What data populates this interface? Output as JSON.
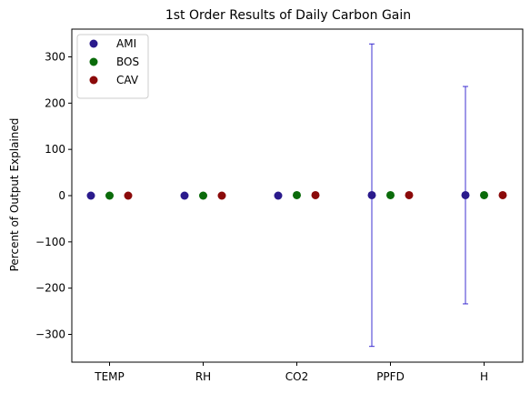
{
  "chart_data": {
    "type": "scatter",
    "title": "1st Order Results of Daily Carbon Gain",
    "xlabel": "",
    "ylabel": "Percent of Output Explained",
    "categories": [
      "TEMP",
      "RH",
      "CO2",
      "PPFD",
      "H"
    ],
    "ylim": [
      -360,
      360
    ],
    "yticks": [
      -300,
      -200,
      -100,
      0,
      100,
      200,
      300
    ],
    "ytick_labels": [
      "−300",
      "−200",
      "−100",
      "0",
      "100",
      "200",
      "300"
    ],
    "grid": false,
    "legend_position": "top-left",
    "series": [
      {
        "name": "AMI",
        "color": "#2a1a8c",
        "values": [
          0,
          0,
          0,
          1,
          1
        ],
        "error": [
          null,
          null,
          null,
          327,
          235
        ]
      },
      {
        "name": "BOS",
        "color": "#0a6b0a",
        "values": [
          0,
          0,
          1,
          1,
          1
        ],
        "error": [
          null,
          null,
          null,
          null,
          null
        ]
      },
      {
        "name": "CAV",
        "color": "#8b0a0a",
        "values": [
          0,
          0,
          1,
          1,
          1
        ],
        "error": [
          null,
          null,
          null,
          null,
          null
        ]
      }
    ],
    "errorbar_color": "#2a1acc"
  }
}
